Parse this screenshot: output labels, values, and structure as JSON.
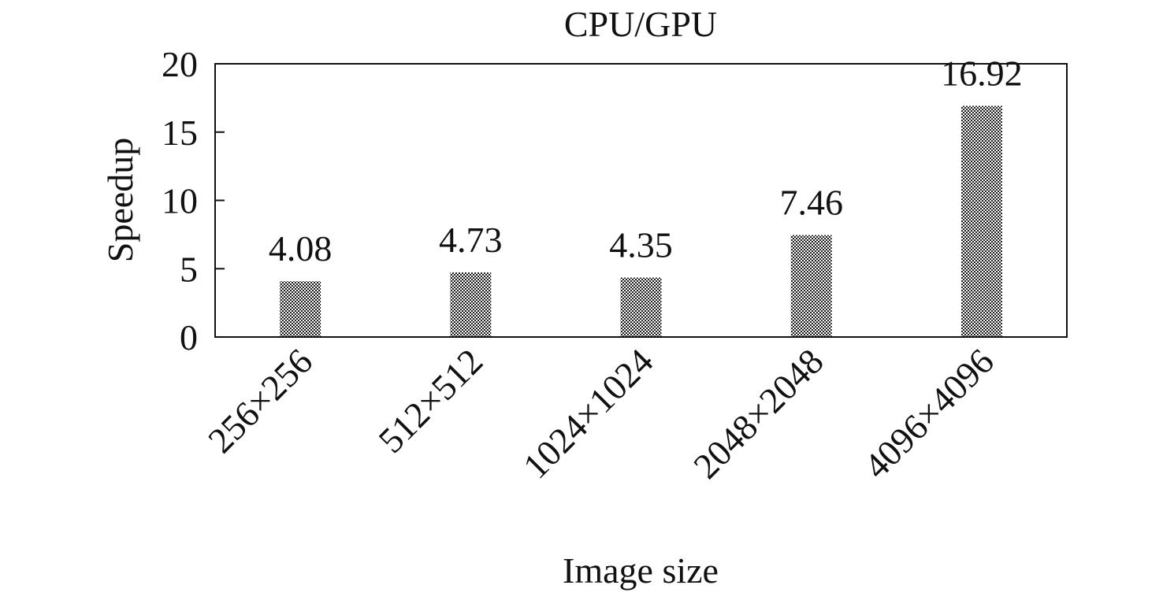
{
  "chart_data": {
    "type": "bar",
    "title": "CPU/GPU",
    "xlabel": "Image size",
    "ylabel": "Speedup",
    "categories": [
      "256×256",
      "512×512",
      "1024×1024",
      "2048×2048",
      "4096×4096"
    ],
    "values": [
      4.08,
      4.73,
      4.35,
      7.46,
      16.92
    ],
    "data_labels": [
      "4.08",
      "4.73",
      "4.35",
      "7.46",
      "16.92"
    ],
    "ylim": [
      0,
      20
    ],
    "yticks": [
      0,
      5,
      10,
      15,
      20
    ],
    "ytick_labels": [
      "0",
      "5",
      "10",
      "15",
      "20"
    ],
    "grid": false,
    "legend": "none",
    "bar_color": "#1a1a1a",
    "bar_fill": "checkered pattern"
  }
}
